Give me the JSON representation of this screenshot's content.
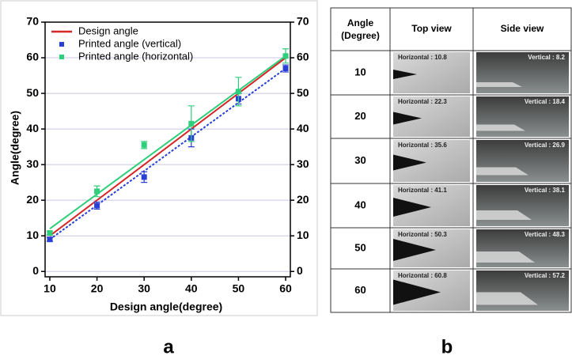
{
  "chart_data": {
    "type": "line",
    "x_label": "Design angle(degree)",
    "y_label": "Angle(degree)",
    "x": [
      10,
      20,
      30,
      40,
      50,
      60
    ],
    "xlim": [
      9,
      61
    ],
    "xticks": [
      10,
      20,
      30,
      40,
      50,
      60
    ],
    "ylim": [
      -1.5,
      70
    ],
    "yticks": [
      0,
      10,
      20,
      30,
      40,
      50,
      60,
      70
    ],
    "y2lim": [
      -1.5,
      70
    ],
    "y2ticks": [
      0,
      10,
      20,
      30,
      40,
      50,
      60,
      70
    ],
    "grid": true,
    "legend": "upper left",
    "series": [
      {
        "name": "Design angle",
        "color": "#d62728",
        "style": "line",
        "values": [
          10,
          20,
          30,
          40,
          50,
          60
        ]
      },
      {
        "name": "Printed angle (vertical)",
        "color": "#2a3fd6",
        "style": "markers",
        "values": [
          9,
          18.5,
          26.5,
          37.5,
          48.5,
          57
        ],
        "errors": [
          0.5,
          1,
          1.5,
          2.5,
          1.5,
          1
        ],
        "trend_values": [
          9,
          18.6,
          28.2,
          37.8,
          47.4,
          57
        ],
        "trend_dash": true
      },
      {
        "name": "Printed angle (horizontal)",
        "color": "#2ecf7a",
        "style": "markers",
        "values": [
          10.8,
          22.5,
          35.5,
          41.5,
          50.5,
          60.5
        ],
        "errors": [
          0.5,
          1.5,
          1,
          5,
          4,
          2
        ],
        "trend_values": [
          12,
          21.7,
          31.4,
          41.1,
          50.8,
          60.5
        ],
        "trend_dash": false
      }
    ]
  },
  "table": {
    "angle_header": [
      "Angle",
      "(Degree)"
    ],
    "header": [
      "Top view",
      "Side view"
    ],
    "rows": [
      [
        "10",
        "Horizontal : 10.8",
        "Vertical : 8.2"
      ],
      [
        "20",
        "Horizontal : 22.3",
        "Vertical : 18.4"
      ],
      [
        "30",
        "Horizontal : 35.6",
        "Vertical : 26.9"
      ],
      [
        "40",
        "Horizontal : 41.1",
        "Vertical : 38.1"
      ],
      [
        "50",
        "Horizontal : 50.3",
        "Vertical : 48.3"
      ],
      [
        "60",
        "Horizontal : 60.8",
        "Vertical : 57.2"
      ]
    ]
  },
  "panel_labels": [
    "a",
    "b"
  ]
}
